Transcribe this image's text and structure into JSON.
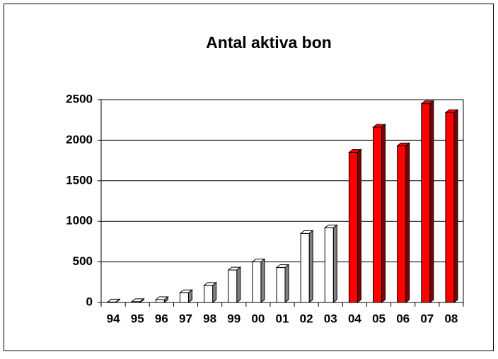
{
  "chart_data": {
    "type": "bar3d",
    "title": "Antal aktiva bon",
    "categories": [
      "94",
      "95",
      "96",
      "97",
      "98",
      "99",
      "00",
      "01",
      "02",
      "03",
      "04",
      "05",
      "06",
      "07",
      "08"
    ],
    "values": [
      5,
      10,
      35,
      120,
      210,
      400,
      500,
      430,
      850,
      920,
      1850,
      2160,
      1930,
      2450,
      2340
    ],
    "colors": [
      "#ffffff",
      "#ffffff",
      "#ffffff",
      "#ffffff",
      "#ffffff",
      "#ffffff",
      "#ffffff",
      "#ffffff",
      "#ffffff",
      "#ffffff",
      "#ff0000",
      "#ff0000",
      "#ff0000",
      "#ff0000",
      "#ff0000"
    ],
    "ylim": [
      0,
      2500
    ],
    "yticks": [
      0,
      500,
      1000,
      1500,
      2000,
      2500
    ],
    "grid": true
  }
}
